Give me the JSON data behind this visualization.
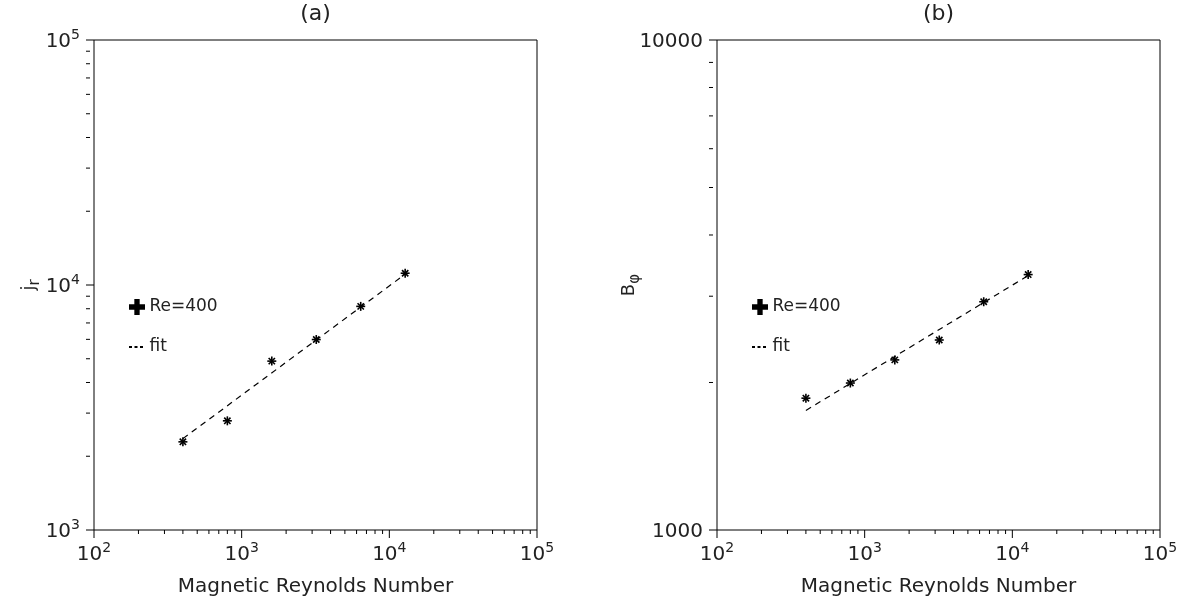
{
  "chart_data": [
    {
      "type": "scatter",
      "title": "(a)",
      "xlabel": "Magnetic Reynolds Number",
      "ylabel": "j$_{r}$",
      "log": "xy",
      "legend": "left",
      "xlim": [
        100,
        100000
      ],
      "ylim": [
        1000,
        100000
      ],
      "xticks": [
        {
          "value": 100,
          "label": "10$^{2}$"
        },
        {
          "value": 200,
          "label": null
        },
        {
          "value": 300,
          "label": null
        },
        {
          "value": 400,
          "label": null
        },
        {
          "value": 500,
          "label": null
        },
        {
          "value": 600,
          "label": null
        },
        {
          "value": 700,
          "label": null
        },
        {
          "value": 800,
          "label": null
        },
        {
          "value": 900,
          "label": null
        },
        {
          "value": 1000,
          "label": "10$^{3}$"
        },
        {
          "value": 2000,
          "label": null
        },
        {
          "value": 3000,
          "label": null
        },
        {
          "value": 4000,
          "label": null
        },
        {
          "value": 5000,
          "label": null
        },
        {
          "value": 6000,
          "label": null
        },
        {
          "value": 7000,
          "label": null
        },
        {
          "value": 8000,
          "label": null
        },
        {
          "value": 9000,
          "label": null
        },
        {
          "value": 10000,
          "label": "10$^{4}$"
        },
        {
          "value": 20000,
          "label": null
        },
        {
          "value": 30000,
          "label": null
        },
        {
          "value": 40000,
          "label": null
        },
        {
          "value": 50000,
          "label": null
        },
        {
          "value": 60000,
          "label": null
        },
        {
          "value": 70000,
          "label": null
        },
        {
          "value": 80000,
          "label": null
        },
        {
          "value": 90000,
          "label": null
        },
        {
          "value": 100000,
          "label": "10$^{5}$"
        }
      ],
      "yticks": [
        {
          "value": 1000,
          "label": "10$^{3}$"
        },
        {
          "value": 2000,
          "label": null
        },
        {
          "value": 3000,
          "label": null
        },
        {
          "value": 4000,
          "label": null
        },
        {
          "value": 5000,
          "label": null
        },
        {
          "value": 6000,
          "label": null
        },
        {
          "value": 7000,
          "label": null
        },
        {
          "value": 8000,
          "label": null
        },
        {
          "value": 9000,
          "label": null
        },
        {
          "value": 10000,
          "label": "10$^{4}$"
        },
        {
          "value": 20000,
          "label": null
        },
        {
          "value": 30000,
          "label": null
        },
        {
          "value": 40000,
          "label": null
        },
        {
          "value": 50000,
          "label": null
        },
        {
          "value": 60000,
          "label": null
        },
        {
          "value": 70000,
          "label": null
        },
        {
          "value": 80000,
          "label": null
        },
        {
          "value": 90000,
          "label": null
        },
        {
          "value": 100000,
          "label": "10$^{5}$"
        }
      ],
      "series": [
        {
          "name": "Re=400",
          "color": "#000000",
          "marker": "cross",
          "x": [
            400,
            800,
            1600,
            3200,
            6400,
            12800
          ],
          "values": [
            2290,
            2790,
            4890,
            5990,
            8180,
            11170
          ]
        },
        {
          "name": "fit",
          "type": "line",
          "color": "#000000",
          "line_style": "dashed",
          "x": [
            400,
            12800
          ],
          "values": [
            2360,
            11070
          ]
        }
      ]
    },
    {
      "type": "scatter",
      "title": "(b)",
      "xlabel": "Magnetic Reynolds Number",
      "ylabel": "B$_{φ}$",
      "log": "xy",
      "legend": "left",
      "xlim": [
        100,
        100000
      ],
      "ylim": [
        1000,
        10000
      ],
      "xticks": [
        {
          "value": 100,
          "label": "10$^{2}$"
        },
        {
          "value": 200,
          "label": null
        },
        {
          "value": 300,
          "label": null
        },
        {
          "value": 400,
          "label": null
        },
        {
          "value": 500,
          "label": null
        },
        {
          "value": 600,
          "label": null
        },
        {
          "value": 700,
          "label": null
        },
        {
          "value": 800,
          "label": null
        },
        {
          "value": 900,
          "label": null
        },
        {
          "value": 1000,
          "label": "10$^{3}$"
        },
        {
          "value": 2000,
          "label": null
        },
        {
          "value": 3000,
          "label": null
        },
        {
          "value": 4000,
          "label": null
        },
        {
          "value": 5000,
          "label": null
        },
        {
          "value": 6000,
          "label": null
        },
        {
          "value": 7000,
          "label": null
        },
        {
          "value": 8000,
          "label": null
        },
        {
          "value": 9000,
          "label": null
        },
        {
          "value": 10000,
          "label": "10$^{4}$"
        },
        {
          "value": 20000,
          "label": null
        },
        {
          "value": 30000,
          "label": null
        },
        {
          "value": 40000,
          "label": null
        },
        {
          "value": 50000,
          "label": null
        },
        {
          "value": 60000,
          "label": null
        },
        {
          "value": 70000,
          "label": null
        },
        {
          "value": 80000,
          "label": null
        },
        {
          "value": 90000,
          "label": null
        },
        {
          "value": 100000,
          "label": "10$^{5}$"
        }
      ],
      "yticks": [
        1000,
        {
          "value": 2000,
          "label": null
        },
        {
          "value": 3000,
          "label": null
        },
        {
          "value": 4000,
          "label": null
        },
        {
          "value": 5000,
          "label": null
        },
        {
          "value": 6000,
          "label": null
        },
        {
          "value": 7000,
          "label": null
        },
        {
          "value": 8000,
          "label": null
        },
        {
          "value": 9000,
          "label": null
        },
        10000
      ],
      "series": [
        {
          "name": "Re=400",
          "color": "#000000",
          "marker": "cross",
          "x": [
            400,
            800,
            1600,
            3200,
            6400,
            12800
          ],
          "values": [
            1858,
            1995,
            2224,
            2442,
            2923,
            3321
          ]
        },
        {
          "name": "fit",
          "type": "line",
          "color": "#000000",
          "line_style": "dashed",
          "x": [
            400,
            12800
          ],
          "values": [
            1754,
            3306
          ]
        }
      ]
    }
  ]
}
